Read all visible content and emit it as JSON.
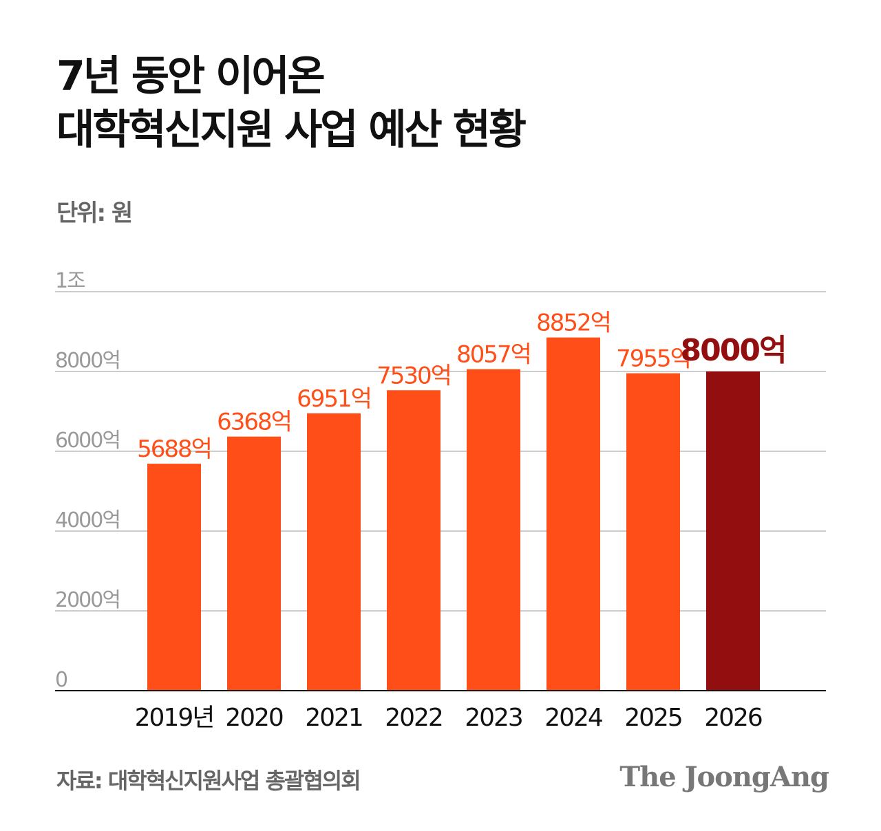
{
  "title_lines": [
    "7년 동안 이어온",
    "대학혁신지원 사업 예산 현황"
  ],
  "unit": "단위: 원",
  "source": "자료: 대학혁신지원사업 총괄협의회",
  "logo": "The JoongAng",
  "colors": {
    "bar": "#FF4E17",
    "highlight": "#930F0F",
    "grid": "#cccccc",
    "tick_text": "#999999"
  },
  "chart_data": {
    "type": "bar",
    "categories": [
      "2019년",
      "2020",
      "2021",
      "2022",
      "2023",
      "2024",
      "2025",
      "2026"
    ],
    "values": [
      5688,
      6368,
      6951,
      7530,
      8057,
      8852,
      7955,
      8000
    ],
    "data_labels": [
      "5688억",
      "6368억",
      "6951억",
      "7530억",
      "8057억",
      "8852억",
      "7955억",
      "8000억"
    ],
    "highlight_index": 7,
    "ylim": [
      0,
      10000
    ],
    "yticks": [
      0,
      2000,
      4000,
      6000,
      8000,
      10000
    ],
    "ytick_labels": [
      "0",
      "2000억",
      "4000억",
      "6000억",
      "8000억",
      "1조"
    ],
    "grid": true
  }
}
